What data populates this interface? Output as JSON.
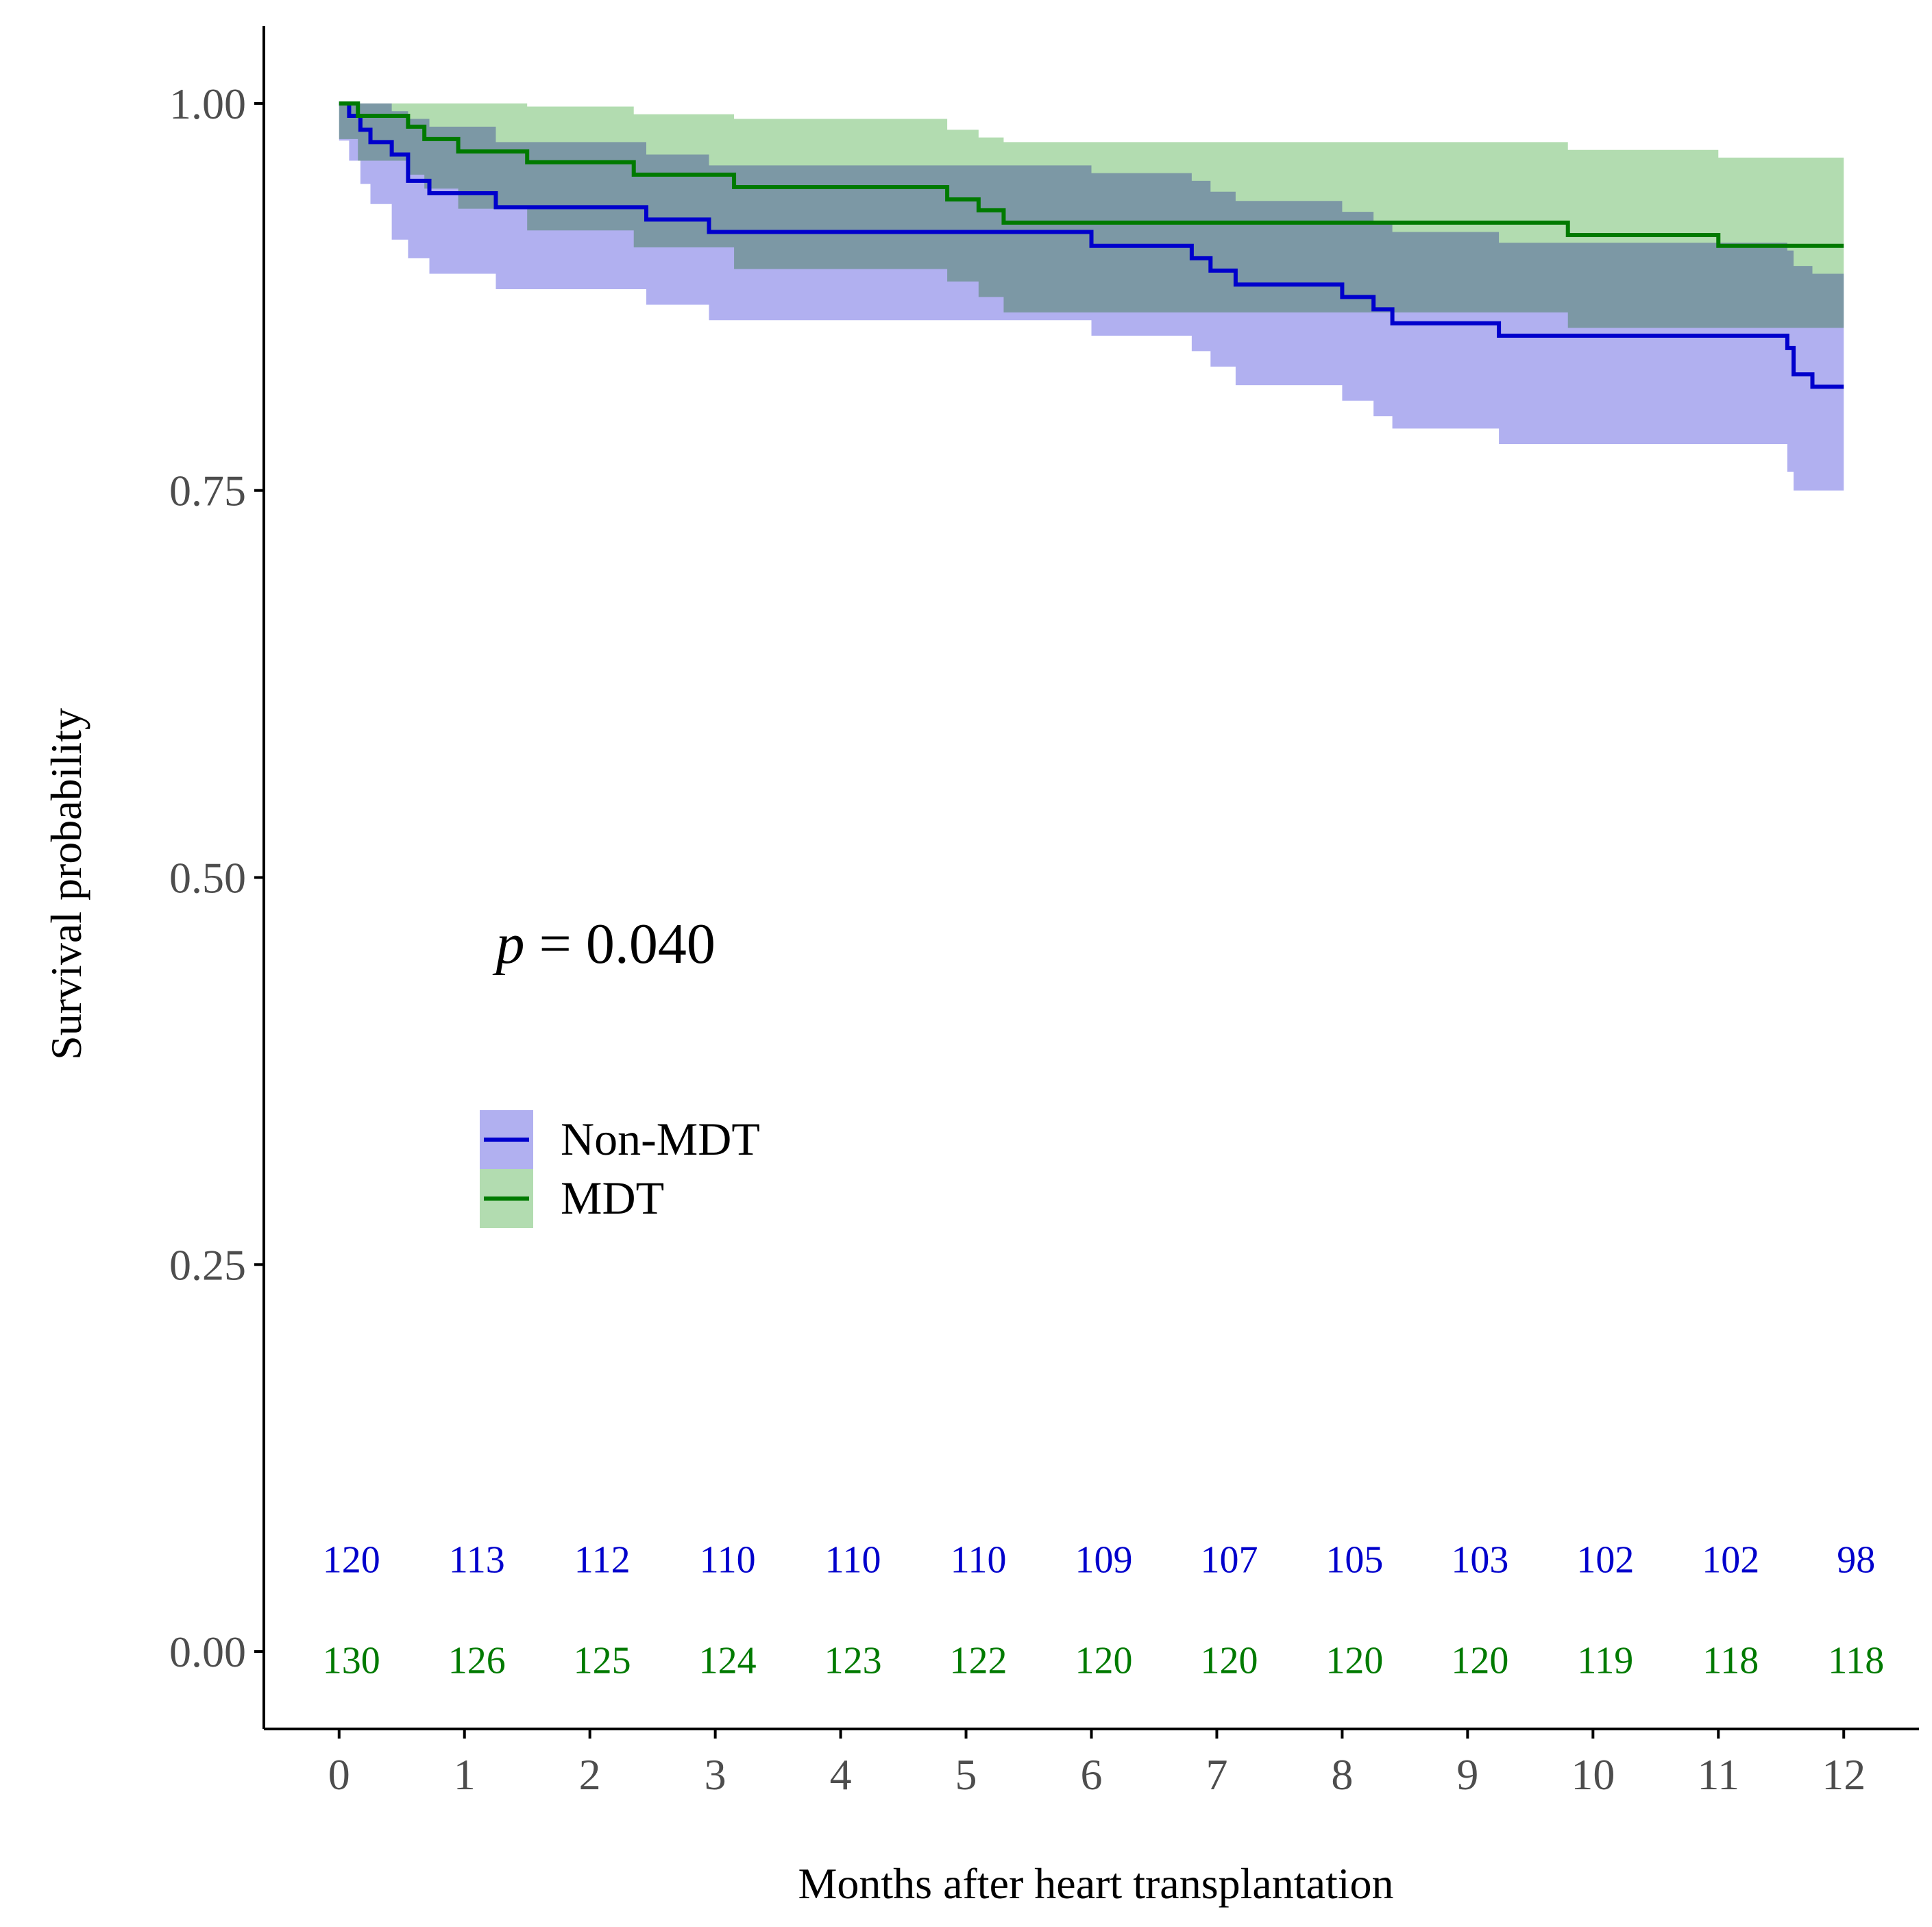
{
  "colors": {
    "non_mdt_line": "#0000cc",
    "non_mdt_band": "#b1b0f0",
    "mdt_line": "#007a00",
    "mdt_band": "#b2dcb0",
    "overlap_band": "#7faaa2",
    "axis": "#000000",
    "tick_label": "#4d4d4d"
  },
  "chart_data": {
    "type": "line",
    "subtype": "kaplan-meier",
    "xlabel": "Months after heart transplantation",
    "ylabel": "Survival probability",
    "xlim": [
      -0.6,
      12.6
    ],
    "ylim": [
      -0.05,
      1.05
    ],
    "x_ticks": [
      0,
      1,
      2,
      3,
      4,
      5,
      6,
      7,
      8,
      9,
      10,
      11,
      12
    ],
    "x_tick_labels": [
      "0",
      "1",
      "2",
      "3",
      "4",
      "5",
      "6",
      "7",
      "8",
      "9",
      "10",
      "11",
      "12"
    ],
    "y_ticks": [
      0,
      0.25,
      0.5,
      0.75,
      1
    ],
    "y_tick_labels": [
      "0.00",
      "0.25",
      "0.50",
      "0.75",
      "1.00"
    ],
    "annotation": {
      "italic": "p",
      "rest": " = 0.040",
      "x": 1.25,
      "y": 0.445
    },
    "legend": {
      "placement": "center-left"
    },
    "series": [
      {
        "name": "Non-MDT",
        "color_key": "non_mdt",
        "times": [
          0,
          0.08,
          0.17,
          0.25,
          0.42,
          0.55,
          0.72,
          1.25,
          2.45,
          2.95,
          6.0,
          6.8,
          6.95,
          7.15,
          8.0,
          8.25,
          8.4,
          9.25,
          11.55,
          11.6,
          11.75,
          12.0
        ],
        "surv": [
          1.0,
          0.992,
          0.983,
          0.975,
          0.967,
          0.95,
          0.942,
          0.933,
          0.925,
          0.917,
          0.908,
          0.9,
          0.892,
          0.883,
          0.875,
          0.867,
          0.858,
          0.85,
          0.842,
          0.825,
          0.817,
          0.817
        ],
        "upper": [
          1.0,
          1.0,
          1.0,
          1.0,
          0.995,
          0.99,
          0.985,
          0.975,
          0.967,
          0.96,
          0.955,
          0.95,
          0.943,
          0.937,
          0.93,
          0.923,
          0.917,
          0.91,
          0.905,
          0.895,
          0.89,
          0.89
        ],
        "lower": [
          1.0,
          0.976,
          0.963,
          0.948,
          0.935,
          0.912,
          0.9,
          0.89,
          0.88,
          0.87,
          0.86,
          0.85,
          0.84,
          0.83,
          0.818,
          0.808,
          0.798,
          0.79,
          0.78,
          0.762,
          0.75,
          0.75
        ],
        "at_risk": [
          120,
          113,
          112,
          110,
          110,
          110,
          109,
          107,
          105,
          103,
          102,
          102,
          98
        ],
        "at_risk_y": 0.06
      },
      {
        "name": "MDT",
        "color_key": "mdt",
        "times": [
          0,
          0.15,
          0.55,
          0.68,
          0.95,
          1.5,
          2.35,
          3.15,
          4.85,
          5.1,
          5.3,
          9.8,
          11.0,
          12.0
        ],
        "surv": [
          1.0,
          0.992,
          0.985,
          0.977,
          0.969,
          0.962,
          0.954,
          0.946,
          0.938,
          0.931,
          0.923,
          0.915,
          0.908,
          0.908
        ],
        "upper": [
          1.0,
          1.0,
          1.0,
          1.0,
          1.0,
          0.998,
          0.993,
          0.99,
          0.983,
          0.978,
          0.975,
          0.97,
          0.965,
          0.965
        ],
        "lower": [
          1.0,
          0.977,
          0.963,
          0.954,
          0.945,
          0.932,
          0.918,
          0.907,
          0.893,
          0.885,
          0.875,
          0.865,
          0.855,
          0.855
        ],
        "at_risk": [
          130,
          126,
          125,
          124,
          123,
          122,
          120,
          120,
          120,
          120,
          119,
          118,
          118
        ],
        "at_risk_y": -0.005
      }
    ]
  }
}
